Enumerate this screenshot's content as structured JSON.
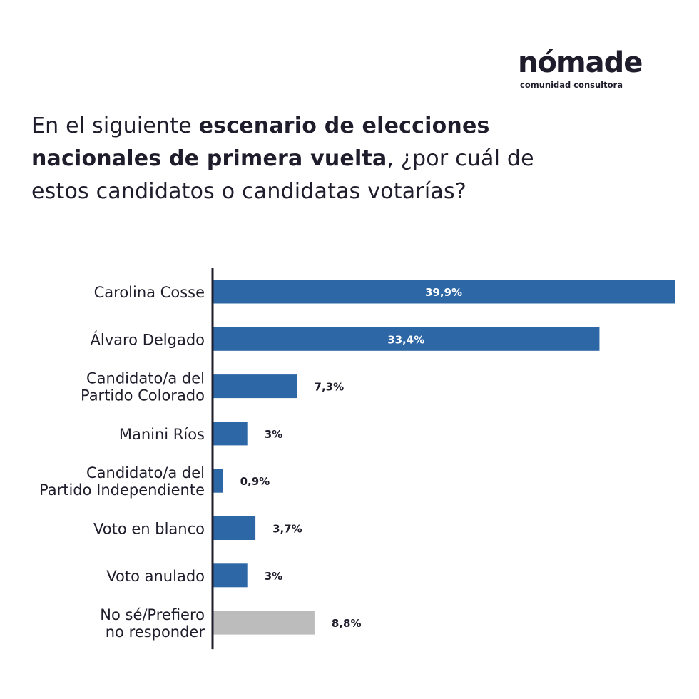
{
  "brand": {
    "name": "nómade",
    "tagline": "comunidad consultora"
  },
  "question": {
    "part1": "En el siguiente ",
    "bold": "escenario de elecciones nacionales de primera vuelta",
    "part2": ", ¿por cuál de estos candidatos o candidatas votarías?"
  },
  "colors": {
    "bar": "#2d67a5",
    "bar_muted": "#bcbcbc",
    "label_inside": "#ffffff",
    "label_outside": "#1f1d2b",
    "axis": "#1f1d2b"
  },
  "chart_data": {
    "type": "bar",
    "orientation": "horizontal",
    "categories": [
      [
        "Carolina Cosse"
      ],
      [
        "Álvaro Delgado"
      ],
      [
        "Candidato/a del",
        "Partido Colorado"
      ],
      [
        "Manini Ríos"
      ],
      [
        "Candidato/a del",
        "Partido Independiente"
      ],
      [
        "Voto en blanco"
      ],
      [
        "Voto anulado"
      ],
      [
        "No sé/Prefiero",
        "no responder"
      ]
    ],
    "values": [
      39.9,
      33.4,
      7.3,
      3,
      0.9,
      3.7,
      3,
      8.8
    ],
    "value_labels": [
      "39,9%",
      "33,4%",
      "7,3%",
      "3%",
      "0,9%",
      "3,7%",
      "3%",
      "8,8%"
    ],
    "muted_index": [
      7
    ],
    "xlim": [
      0,
      39.9
    ],
    "grid": false
  }
}
